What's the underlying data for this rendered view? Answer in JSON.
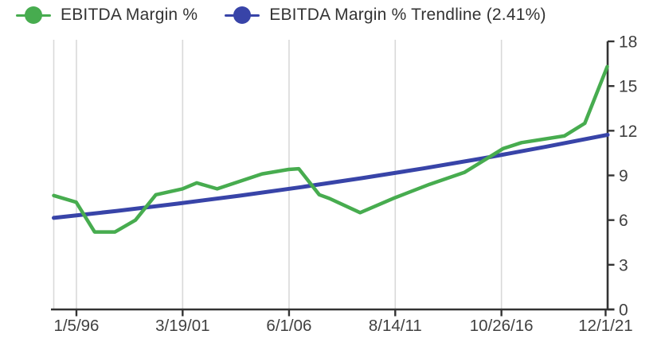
{
  "page": {
    "background": "#FFFFFF"
  },
  "colors": {
    "series_green": "#47AC4F",
    "series_blue": "#3844A8",
    "gridline": "#D9D9D9",
    "axis": "#333333",
    "tick_label": "#404040",
    "legend_text": "#333333"
  },
  "legend": {
    "position": "top",
    "items": [
      {
        "label": "EBITDA Margin %",
        "color": "#47AC4F",
        "marker": "line-circle-icon"
      },
      {
        "label": "EBITDA Margin % Trendline (2.41%)",
        "color": "#3844A8",
        "marker": "line-circle-icon"
      }
    ]
  },
  "chart_data": {
    "type": "line",
    "title": "",
    "xlabel": "",
    "ylabel": "",
    "x_axis": {
      "tick_labels": [
        "1/5/96",
        "3/19/01",
        "6/1/06",
        "8/14/11",
        "10/26/16",
        "12/1/21"
      ],
      "tick_years": [
        1996.01,
        2001.21,
        2006.42,
        2011.62,
        2016.82,
        2021.92
      ],
      "min_year": 1994.9,
      "max_year": 2022.02,
      "gridlines": true
    },
    "y_axis": {
      "min": 0,
      "max": 18,
      "ticks": [
        0,
        3,
        6,
        9,
        12,
        15,
        18
      ],
      "side": "right",
      "gridlines": false
    },
    "series": [
      {
        "name": "EBITDA Margin %",
        "color": "#47AC4F",
        "points": [
          [
            1994.9,
            7.65
          ],
          [
            1996.0,
            7.2
          ],
          [
            1996.9,
            5.2
          ],
          [
            1997.9,
            5.2
          ],
          [
            1998.9,
            6.0
          ],
          [
            1999.9,
            7.7
          ],
          [
            2001.2,
            8.1
          ],
          [
            2001.9,
            8.5
          ],
          [
            2002.9,
            8.1
          ],
          [
            2004.0,
            8.6
          ],
          [
            2005.1,
            9.1
          ],
          [
            2006.4,
            9.4
          ],
          [
            2006.9,
            9.45
          ],
          [
            2007.9,
            7.7
          ],
          [
            2008.4,
            7.45
          ],
          [
            2009.9,
            6.5
          ],
          [
            2011.6,
            7.5
          ],
          [
            2013.3,
            8.4
          ],
          [
            2015.0,
            9.2
          ],
          [
            2016.9,
            10.8
          ],
          [
            2017.8,
            11.2
          ],
          [
            2019.9,
            11.65
          ],
          [
            2020.9,
            12.5
          ],
          [
            2022.0,
            16.3
          ]
        ]
      },
      {
        "name": "EBITDA Margin % Trendline (2.41%)",
        "color": "#3844A8",
        "growth_rate_pct": 2.41,
        "points": [
          [
            1994.9,
            6.15
          ],
          [
            1998.0,
            6.62
          ],
          [
            2001.0,
            7.11
          ],
          [
            2004.0,
            7.64
          ],
          [
            2007.0,
            8.21
          ],
          [
            2010.0,
            8.82
          ],
          [
            2013.0,
            9.47
          ],
          [
            2016.0,
            10.17
          ],
          [
            2019.0,
            10.93
          ],
          [
            2022.02,
            11.73
          ]
        ]
      }
    ]
  }
}
